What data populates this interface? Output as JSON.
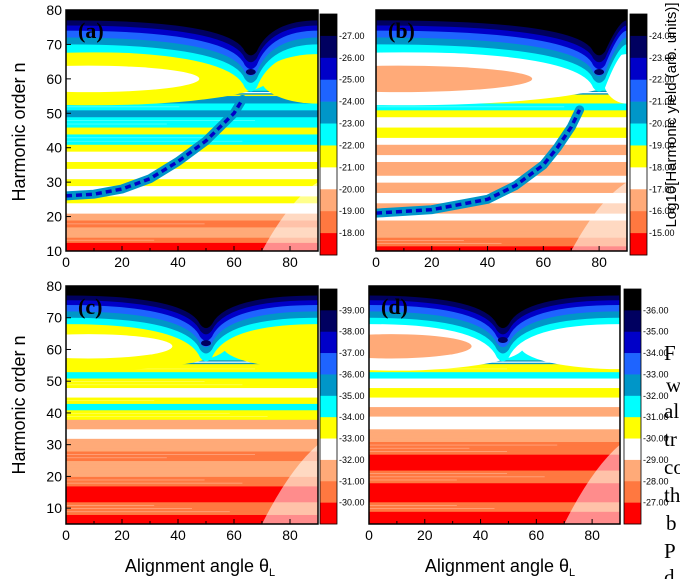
{
  "chart_data": {
    "type": "heatmap",
    "xlabel": "Alignment angle θ",
    "xlabel_subscript": "L",
    "ylabel": "Harmonic order n",
    "colorbar_label": "Log10[Harmonic yield (arb. units)]",
    "panels": [
      {
        "label": "(a)",
        "xlim": [
          0,
          90
        ],
        "ylim": [
          10,
          80
        ],
        "x_ticks": [
          "0",
          "20",
          "40",
          "60",
          "80"
        ],
        "y_ticks": [
          "10",
          "20",
          "30",
          "40",
          "50",
          "60",
          "70",
          "80"
        ],
        "colorbar_ticks": [
          "-27.00",
          "-26.00",
          "-25.00",
          "-24.00",
          "-23.00",
          "-22.00",
          "-21.00",
          "-20.00",
          "-19.00",
          "-18.00"
        ],
        "cutoff_order": 56,
        "minimum_curve": {
          "angle": [
            0,
            10,
            20,
            30,
            40,
            50,
            55,
            60,
            63
          ],
          "order": [
            26,
            26.5,
            28,
            31,
            36,
            42,
            46,
            50,
            54
          ]
        },
        "upper_minimum": {
          "angle": 66,
          "order": 63
        }
      },
      {
        "label": "(b)",
        "xlim": [
          0,
          90
        ],
        "ylim": [
          10,
          80
        ],
        "x_ticks": [
          "0",
          "20",
          "40",
          "60",
          "80"
        ],
        "y_ticks": [],
        "colorbar_ticks": [
          "-24.00",
          "-23.00",
          "-22.00",
          "-21.00",
          "-20.00",
          "-19.00",
          "-18.00",
          "-17.00",
          "-16.00",
          "-15.00"
        ],
        "cutoff_order": 56,
        "minimum_curve": {
          "angle": [
            0,
            20,
            40,
            50,
            60,
            65,
            70,
            73
          ],
          "order": [
            21,
            22,
            25,
            29,
            35,
            40,
            46,
            51
          ]
        },
        "upper_minimum": {
          "angle": 80,
          "order": 62
        }
      },
      {
        "label": "(c)",
        "xlim": [
          0,
          90
        ],
        "ylim": [
          5,
          80
        ],
        "x_ticks": [
          "0",
          "20",
          "40",
          "60",
          "80"
        ],
        "y_ticks": [
          "10",
          "20",
          "30",
          "40",
          "50",
          "60",
          "70",
          "80"
        ],
        "colorbar_ticks": [
          "-39.00",
          "-38.00",
          "-37.00",
          "-36.00",
          "-35.00",
          "-34.00",
          "-33.00",
          "-32.00",
          "-31.00",
          "-30.00"
        ],
        "cutoff_order": 56,
        "upper_minimum": {
          "angle": 50,
          "order": 62
        }
      },
      {
        "label": "(d)",
        "xlim": [
          0,
          90
        ],
        "ylim": [
          5,
          80
        ],
        "x_ticks": [
          "0",
          "20",
          "40",
          "60",
          "80"
        ],
        "y_ticks": [],
        "colorbar_ticks": [
          "-36.00",
          "-35.00",
          "-34.00",
          "-33.00",
          "-32.00",
          "-31.00",
          "-30.00",
          "-29.00",
          "-28.00",
          "-27.00"
        ],
        "cutoff_order": 56,
        "upper_minimum": {
          "angle": 48,
          "order": 63
        }
      }
    ],
    "color_levels": [
      "#000000",
      "#000060",
      "#0000c8",
      "#1e64ff",
      "#0096c8",
      "#00ffff",
      "#ffff00",
      "#ffffff",
      "#ffaa78",
      "#ff7840",
      "#ff0000"
    ]
  },
  "background_text": {
    "lines": [
      "F",
      "w",
      "al",
      "tr",
      "co",
      "th",
      "b",
      "P",
      "d"
    ]
  }
}
